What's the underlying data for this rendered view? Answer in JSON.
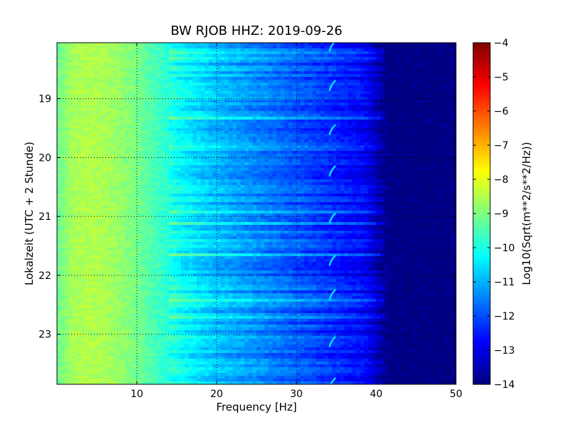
{
  "chart_data": {
    "type": "heatmap",
    "title": "BW RJOB HHZ: 2019-09-26",
    "xlabel": "Frequency [Hz]",
    "ylabel": "Lokalzeit (UTC + 2 Stunde)",
    "xlim": [
      0,
      50
    ],
    "ylim": [
      18.05,
      23.85
    ],
    "x_ticks": [
      10,
      20,
      30,
      40,
      50
    ],
    "x_tick_labels": [
      "10",
      "20",
      "30",
      "40",
      "50"
    ],
    "y_ticks": [
      19,
      20,
      21,
      22,
      23
    ],
    "y_tick_labels": [
      "19",
      "20",
      "21",
      "22",
      "23"
    ],
    "y_inverted": true,
    "grid": true,
    "colormap": "jet",
    "colorbar": {
      "label": "Log10(Sqrt(m**2/s**2/Hz))",
      "range": [
        -14,
        -4
      ],
      "ticks": [
        -4,
        -5,
        -6,
        -7,
        -8,
        -9,
        -10,
        -11,
        -12,
        -13,
        -14
      ],
      "tick_labels": [
        "−4",
        "−5",
        "−6",
        "−7",
        "−8",
        "−9",
        "−10",
        "−11",
        "−12",
        "−13",
        "−14"
      ]
    },
    "psd_profile": {
      "frequency_hz": [
        0,
        2,
        4,
        6,
        8,
        10,
        12,
        14,
        16,
        18,
        20,
        22,
        24,
        26,
        28,
        30,
        32,
        34,
        36,
        38,
        39,
        40,
        41,
        42,
        45,
        50
      ],
      "log10_amplitude": [
        -9.2,
        -8.6,
        -8.5,
        -8.6,
        -8.8,
        -9.1,
        -9.5,
        -9.9,
        -10.3,
        -10.6,
        -10.9,
        -11.1,
        -11.3,
        -11.5,
        -11.7,
        -11.9,
        -12.1,
        -12.3,
        -12.5,
        -12.7,
        -12.9,
        -13.3,
        -13.8,
        -14,
        -14,
        -14
      ]
    },
    "tremor_line_hz": 34.5,
    "tremor_line_times": [
      18.08,
      18.75,
      19.5,
      20.2,
      21.0,
      21.72,
      22.3,
      23.1,
      23.8
    ]
  }
}
